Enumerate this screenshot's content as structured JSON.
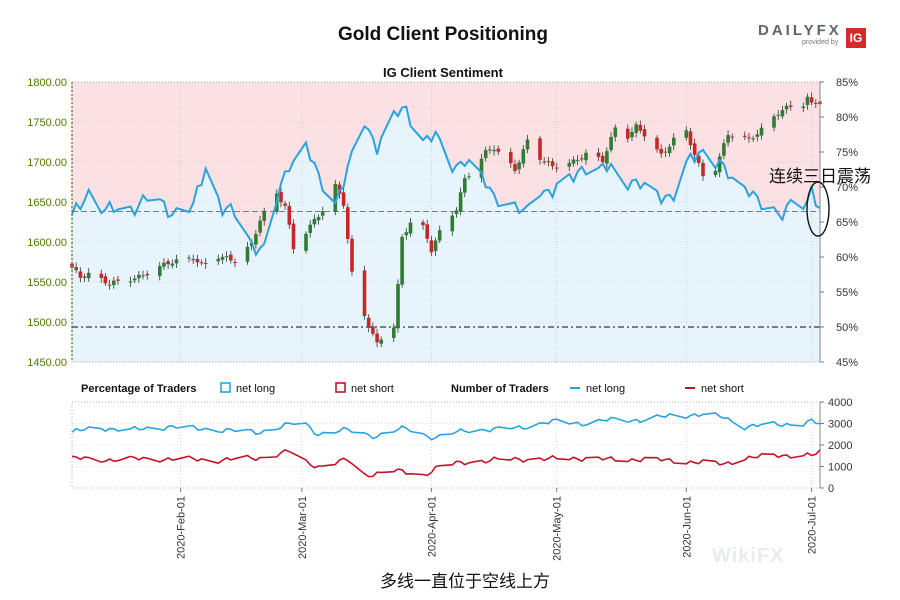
{
  "header": {
    "title": "Gold Client Positioning",
    "logo_brand": "DAILYFX",
    "logo_sub": "provided by",
    "logo_ig": "IG",
    "watermark": "WikiFX"
  },
  "annotation": "连续三日震荡",
  "caption": "多线一直位于空线上方",
  "colors": {
    "up_candle": "#2e7d32",
    "down_candle": "#c62828",
    "wick": "#333333",
    "net_long_line": "#29a3dc",
    "net_short_line": "#c0142c",
    "long_fill": "#e8f4fc",
    "short_fill": "#fbe1e3",
    "price_axis": "#4a7a00"
  },
  "chart_data": [
    {
      "type": "candlestick",
      "title": "IG Client Sentiment",
      "price_axis": {
        "ticks": [
          "1800.00",
          "1750.00",
          "1700.00",
          "1650.00",
          "1600.00",
          "1550.00",
          "1500.00",
          "1450.00"
        ],
        "ylim": [
          1450,
          1800
        ]
      },
      "sentiment_axis": {
        "ticks": [
          "85%",
          "80%",
          "75%",
          "70%",
          "65%",
          "60%",
          "55%",
          "50%",
          "45%"
        ],
        "ylim": [
          45,
          85
        ]
      },
      "x_ticks": [
        "2020-Feb-01",
        "2020-Mar-01",
        "2020-Apr-01",
        "2020-May-01",
        "2020-Jun-01",
        "2020-Jul-01"
      ],
      "date_range": [
        "2020-01-06",
        "2020-07-03"
      ],
      "close_anchors": [
        [
          "2020-01-06",
          1568
        ],
        [
          "2020-01-08",
          1556
        ],
        [
          "2020-01-10",
          1560
        ],
        [
          "2020-01-15",
          1548
        ],
        [
          "2020-01-22",
          1556
        ],
        [
          "2020-01-29",
          1574
        ],
        [
          "2020-02-04",
          1580
        ],
        [
          "2020-02-06",
          1571
        ],
        [
          "2020-02-10",
          1582
        ],
        [
          "2020-02-14",
          1577
        ],
        [
          "2020-02-18",
          1597
        ],
        [
          "2020-02-20",
          1628
        ],
        [
          "2020-02-24",
          1660
        ],
        [
          "2020-02-26",
          1645
        ],
        [
          "2020-02-28",
          1592
        ],
        [
          "2020-03-03",
          1620
        ],
        [
          "2020-03-06",
          1640
        ],
        [
          "2020-03-09",
          1670
        ],
        [
          "2020-03-11",
          1648
        ],
        [
          "2020-03-13",
          1560
        ],
        [
          "2020-03-16",
          1508
        ],
        [
          "2020-03-19",
          1472
        ],
        [
          "2020-03-20",
          1480
        ],
        [
          "2020-03-23",
          1495
        ],
        [
          "2020-03-24",
          1545
        ],
        [
          "2020-03-25",
          1605
        ],
        [
          "2020-03-27",
          1625
        ],
        [
          "2020-03-30",
          1618
        ],
        [
          "2020-04-01",
          1590
        ],
        [
          "2020-04-03",
          1612
        ],
        [
          "2020-04-07",
          1642
        ],
        [
          "2020-04-09",
          1678
        ],
        [
          "2020-04-14",
          1712
        ],
        [
          "2020-04-16",
          1718
        ],
        [
          "2020-04-21",
          1690
        ],
        [
          "2020-04-24",
          1726
        ],
        [
          "2020-04-27",
          1705
        ],
        [
          "2020-04-30",
          1694
        ],
        [
          "2020-05-05",
          1700
        ],
        [
          "2020-05-08",
          1710
        ],
        [
          "2020-05-12",
          1702
        ],
        [
          "2020-05-15",
          1742
        ],
        [
          "2020-05-18",
          1732
        ],
        [
          "2020-05-20",
          1744
        ],
        [
          "2020-05-22",
          1735
        ],
        [
          "2020-05-26",
          1708
        ],
        [
          "2020-05-29",
          1728
        ],
        [
          "2020-06-01",
          1738
        ],
        [
          "2020-06-05",
          1682
        ],
        [
          "2020-06-08",
          1692
        ],
        [
          "2020-06-11",
          1735
        ],
        [
          "2020-06-16",
          1728
        ],
        [
          "2020-06-19",
          1740
        ],
        [
          "2020-06-23",
          1762
        ],
        [
          "2020-06-26",
          1770
        ],
        [
          "2020-06-29",
          1772
        ],
        [
          "2020-06-30",
          1780
        ],
        [
          "2020-07-01",
          1772
        ],
        [
          "2020-07-02",
          1776
        ],
        [
          "2020-07-03",
          1774
        ]
      ],
      "net_long_pct": {
        "name": "net long",
        "anchors": [
          [
            "2020-01-06",
            65.5
          ],
          [
            "2020-01-08",
            67.5
          ],
          [
            "2020-01-10",
            69.5
          ],
          [
            "2020-01-14",
            66.5
          ],
          [
            "2020-01-20",
            67
          ],
          [
            "2020-01-25",
            68.5
          ],
          [
            "2020-01-30",
            66.5
          ],
          [
            "2020-02-04",
            67
          ],
          [
            "2020-02-07",
            73
          ],
          [
            "2020-02-11",
            67
          ],
          [
            "2020-02-14",
            66
          ],
          [
            "2020-02-18",
            62
          ],
          [
            "2020-02-21",
            61
          ],
          [
            "2020-02-24",
            68
          ],
          [
            "2020-02-27",
            73.5
          ],
          [
            "2020-03-02",
            76
          ],
          [
            "2020-03-05",
            71
          ],
          [
            "2020-03-09",
            68
          ],
          [
            "2020-03-13",
            74
          ],
          [
            "2020-03-16",
            79
          ],
          [
            "2020-03-19",
            76
          ],
          [
            "2020-03-23",
            80
          ],
          [
            "2020-03-26",
            81
          ],
          [
            "2020-03-30",
            77
          ],
          [
            "2020-04-02",
            77
          ],
          [
            "2020-04-06",
            73
          ],
          [
            "2020-04-09",
            74
          ],
          [
            "2020-04-13",
            71
          ],
          [
            "2020-04-16",
            69
          ],
          [
            "2020-04-20",
            67.5
          ],
          [
            "2020-04-23",
            66
          ],
          [
            "2020-04-27",
            70
          ],
          [
            "2020-04-30",
            69
          ],
          [
            "2020-05-04",
            71
          ],
          [
            "2020-05-07",
            73
          ],
          [
            "2020-05-11",
            72
          ],
          [
            "2020-05-14",
            73
          ],
          [
            "2020-05-18",
            71
          ],
          [
            "2020-05-21",
            70
          ],
          [
            "2020-05-26",
            69
          ],
          [
            "2020-05-29",
            68.5
          ],
          [
            "2020-06-02",
            74
          ],
          [
            "2020-06-05",
            75.5
          ],
          [
            "2020-06-09",
            73
          ],
          [
            "2020-06-12",
            71
          ],
          [
            "2020-06-16",
            70
          ],
          [
            "2020-06-19",
            67
          ],
          [
            "2020-06-23",
            66
          ],
          [
            "2020-06-26",
            68
          ],
          [
            "2020-06-30",
            67
          ],
          [
            "2020-07-01",
            69.5
          ],
          [
            "2020-07-03",
            67
          ]
        ]
      },
      "neutral_lines": [
        66.5,
        50
      ]
    },
    {
      "type": "line",
      "title": "Number of Traders",
      "legend_left": {
        "label": "Percentage of Traders",
        "long": "net long",
        "short": "net short"
      },
      "legend_right": {
        "label": "Number of Traders",
        "long": "net long",
        "short": "net short"
      },
      "y_ticks": [
        "4000",
        "3000",
        "2000",
        "1000",
        "0"
      ],
      "ylim": [
        0,
        4000
      ],
      "series": [
        {
          "name": "net long",
          "anchors": [
            [
              "2020-01-06",
              2600
            ],
            [
              "2020-01-12",
              2800
            ],
            [
              "2020-01-20",
              2700
            ],
            [
              "2020-01-30",
              2850
            ],
            [
              "2020-02-10",
              2700
            ],
            [
              "2020-02-20",
              2600
            ],
            [
              "2020-03-01",
              3100
            ],
            [
              "2020-03-05",
              2500
            ],
            [
              "2020-03-12",
              2700
            ],
            [
              "2020-03-19",
              2400
            ],
            [
              "2020-03-26",
              2800
            ],
            [
              "2020-04-02",
              2300
            ],
            [
              "2020-04-09",
              2700
            ],
            [
              "2020-04-16",
              2700
            ],
            [
              "2020-04-23",
              2850
            ],
            [
              "2020-05-01",
              3100
            ],
            [
              "2020-05-08",
              3000
            ],
            [
              "2020-05-15",
              3200
            ],
            [
              "2020-05-22",
              3150
            ],
            [
              "2020-05-29",
              3400
            ],
            [
              "2020-06-05",
              3400
            ],
            [
              "2020-06-10",
              3300
            ],
            [
              "2020-06-15",
              2850
            ],
            [
              "2020-06-22",
              2950
            ],
            [
              "2020-06-29",
              3000
            ],
            [
              "2020-07-01",
              3100
            ],
            [
              "2020-07-03",
              2950
            ]
          ]
        },
        {
          "name": "net short",
          "anchors": [
            [
              "2020-01-06",
              1400
            ],
            [
              "2020-01-12",
              1300
            ],
            [
              "2020-01-20",
              1350
            ],
            [
              "2020-01-30",
              1350
            ],
            [
              "2020-02-10",
              1300
            ],
            [
              "2020-02-20",
              1400
            ],
            [
              "2020-02-27",
              1700
            ],
            [
              "2020-03-02",
              1200
            ],
            [
              "2020-03-05",
              1000
            ],
            [
              "2020-03-12",
              1300
            ],
            [
              "2020-03-16",
              600
            ],
            [
              "2020-03-23",
              800
            ],
            [
              "2020-03-30",
              600
            ],
            [
              "2020-04-03",
              1000
            ],
            [
              "2020-04-09",
              1200
            ],
            [
              "2020-04-16",
              1300
            ],
            [
              "2020-04-23",
              1350
            ],
            [
              "2020-05-01",
              1350
            ],
            [
              "2020-05-08",
              1400
            ],
            [
              "2020-05-15",
              1300
            ],
            [
              "2020-05-22",
              1350
            ],
            [
              "2020-05-29",
              1250
            ],
            [
              "2020-06-05",
              1200
            ],
            [
              "2020-06-10",
              1100
            ],
            [
              "2020-06-15",
              1400
            ],
            [
              "2020-06-22",
              1500
            ],
            [
              "2020-06-29",
              1550
            ],
            [
              "2020-07-01",
              1500
            ],
            [
              "2020-07-03",
              1650
            ]
          ]
        }
      ]
    }
  ]
}
